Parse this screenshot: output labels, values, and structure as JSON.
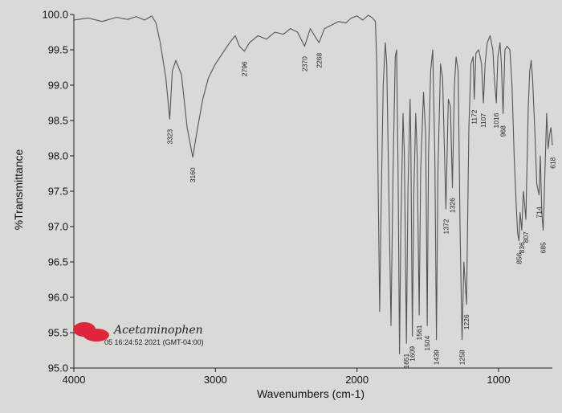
{
  "chart_data": {
    "type": "line",
    "title": "",
    "xlabel": "Wavenumbers (cm-1)",
    "ylabel": "%Transmittance",
    "xlim": [
      4000,
      620
    ],
    "ylim": [
      95.0,
      100.0
    ],
    "x_reversed": true,
    "grid": false,
    "x_ticks": [
      4000,
      3000,
      2000,
      1000
    ],
    "y_ticks": [
      "100.0",
      "99.5",
      "99.0",
      "98.5",
      "98.0",
      "97.5",
      "97.0",
      "96.5",
      "96.0",
      "95.5",
      "95.0"
    ],
    "line_color": "#555555",
    "series": [
      {
        "name": "",
        "points": [
          [
            4000,
            99.92
          ],
          [
            3900,
            99.95
          ],
          [
            3800,
            99.9
          ],
          [
            3700,
            99.96
          ],
          [
            3620,
            99.93
          ],
          [
            3560,
            99.97
          ],
          [
            3500,
            99.92
          ],
          [
            3450,
            99.98
          ],
          [
            3420,
            99.88
          ],
          [
            3390,
            99.6
          ],
          [
            3350,
            99.1
          ],
          [
            3323,
            98.52
          ],
          [
            3305,
            99.2
          ],
          [
            3280,
            99.35
          ],
          [
            3240,
            99.15
          ],
          [
            3200,
            98.4
          ],
          [
            3160,
            97.98
          ],
          [
            3130,
            98.35
          ],
          [
            3090,
            98.8
          ],
          [
            3050,
            99.1
          ],
          [
            3000,
            99.3
          ],
          [
            2950,
            99.45
          ],
          [
            2900,
            99.6
          ],
          [
            2860,
            99.7
          ],
          [
            2830,
            99.55
          ],
          [
            2796,
            99.48
          ],
          [
            2760,
            99.6
          ],
          [
            2700,
            99.7
          ],
          [
            2640,
            99.65
          ],
          [
            2580,
            99.75
          ],
          [
            2520,
            99.72
          ],
          [
            2470,
            99.8
          ],
          [
            2420,
            99.75
          ],
          [
            2370,
            99.55
          ],
          [
            2330,
            99.8
          ],
          [
            2300,
            99.7
          ],
          [
            2268,
            99.6
          ],
          [
            2230,
            99.8
          ],
          [
            2180,
            99.85
          ],
          [
            2130,
            99.9
          ],
          [
            2080,
            99.88
          ],
          [
            2040,
            99.95
          ],
          [
            2000,
            99.98
          ],
          [
            1960,
            99.92
          ],
          [
            1920,
            99.99
          ],
          [
            1890,
            99.95
          ],
          [
            1870,
            99.9
          ],
          [
            1860,
            99.3
          ],
          [
            1850,
            97.5
          ],
          [
            1840,
            95.8
          ],
          [
            1830,
            97.2
          ],
          [
            1815,
            99.0
          ],
          [
            1800,
            99.6
          ],
          [
            1790,
            99.3
          ],
          [
            1775,
            97.5
          ],
          [
            1760,
            95.6
          ],
          [
            1745,
            97.8
          ],
          [
            1730,
            99.4
          ],
          [
            1720,
            99.5
          ],
          [
            1710,
            97.8
          ],
          [
            1700,
            95.2
          ],
          [
            1690,
            97.0
          ],
          [
            1675,
            98.6
          ],
          [
            1665,
            98.0
          ],
          [
            1651,
            95.35
          ],
          [
            1640,
            97.5
          ],
          [
            1625,
            98.8
          ],
          [
            1620,
            98.2
          ],
          [
            1609,
            95.45
          ],
          [
            1598,
            97.5
          ],
          [
            1585,
            98.6
          ],
          [
            1575,
            98.0
          ],
          [
            1561,
            95.75
          ],
          [
            1550,
            97.8
          ],
          [
            1530,
            98.9
          ],
          [
            1515,
            98.3
          ],
          [
            1504,
            95.6
          ],
          [
            1495,
            98.0
          ],
          [
            1480,
            99.2
          ],
          [
            1465,
            99.5
          ],
          [
            1450,
            98.0
          ],
          [
            1439,
            95.4
          ],
          [
            1428,
            97.8
          ],
          [
            1410,
            99.3
          ],
          [
            1395,
            99.1
          ],
          [
            1372,
            97.25
          ],
          [
            1355,
            98.8
          ],
          [
            1340,
            98.7
          ],
          [
            1326,
            97.55
          ],
          [
            1312,
            99.0
          ],
          [
            1300,
            99.4
          ],
          [
            1285,
            99.2
          ],
          [
            1272,
            97.0
          ],
          [
            1258,
            95.4
          ],
          [
            1245,
            96.5
          ],
          [
            1226,
            95.9
          ],
          [
            1210,
            98.4
          ],
          [
            1195,
            99.3
          ],
          [
            1180,
            99.4
          ],
          [
            1172,
            98.8
          ],
          [
            1160,
            99.45
          ],
          [
            1140,
            99.5
          ],
          [
            1120,
            99.3
          ],
          [
            1107,
            98.75
          ],
          [
            1095,
            99.3
          ],
          [
            1080,
            99.6
          ],
          [
            1060,
            99.7
          ],
          [
            1040,
            99.5
          ],
          [
            1030,
            99.1
          ],
          [
            1016,
            98.75
          ],
          [
            1005,
            99.4
          ],
          [
            990,
            99.6
          ],
          [
            980,
            99.3
          ],
          [
            968,
            98.6
          ],
          [
            955,
            99.5
          ],
          [
            940,
            99.55
          ],
          [
            920,
            99.5
          ],
          [
            905,
            99.0
          ],
          [
            890,
            98.0
          ],
          [
            875,
            97.3
          ],
          [
            865,
            96.9
          ],
          [
            856,
            96.8
          ],
          [
            848,
            97.2
          ],
          [
            836,
            96.95
          ],
          [
            825,
            97.5
          ],
          [
            815,
            97.3
          ],
          [
            807,
            97.1
          ],
          [
            800,
            97.8
          ],
          [
            790,
            98.7
          ],
          [
            780,
            99.2
          ],
          [
            770,
            99.35
          ],
          [
            760,
            99.1
          ],
          [
            745,
            98.4
          ],
          [
            730,
            97.6
          ],
          [
            714,
            97.45
          ],
          [
            705,
            98.0
          ],
          [
            695,
            97.2
          ],
          [
            685,
            96.95
          ],
          [
            675,
            97.6
          ],
          [
            660,
            98.6
          ],
          [
            650,
            98.1
          ],
          [
            640,
            98.3
          ],
          [
            630,
            98.4
          ],
          [
            620,
            98.15
          ]
        ]
      }
    ],
    "peak_labels": [
      {
        "x": 3323,
        "text": "3323"
      },
      {
        "x": 3160,
        "text": "3160"
      },
      {
        "x": 2796,
        "text": "2796"
      },
      {
        "x": 2370,
        "text": "2370"
      },
      {
        "x": 2268,
        "text": "2268"
      },
      {
        "x": 1651,
        "text": "1651"
      },
      {
        "x": 1609,
        "text": "1609"
      },
      {
        "x": 1561,
        "text": "1561"
      },
      {
        "x": 1504,
        "text": "1504"
      },
      {
        "x": 1439,
        "text": "1439"
      },
      {
        "x": 1372,
        "text": "1372"
      },
      {
        "x": 1326,
        "text": "1326"
      },
      {
        "x": 1258,
        "text": "1258"
      },
      {
        "x": 1226,
        "text": "1226"
      },
      {
        "x": 1172,
        "text": "1172"
      },
      {
        "x": 1107,
        "text": "1107"
      },
      {
        "x": 1016,
        "text": "1016"
      },
      {
        "x": 968,
        "text": "968"
      },
      {
        "x": 856,
        "text": "856"
      },
      {
        "x": 836,
        "text": "836"
      },
      {
        "x": 807,
        "text": "807"
      },
      {
        "x": 714,
        "text": "714"
      },
      {
        "x": 685,
        "text": "685"
      },
      {
        "x": 618,
        "text": "618"
      }
    ],
    "annotations": {
      "handwritten_label": "Acetaminophen",
      "timestamp": "05 16:24:52 2021 (GMT-04:00)",
      "redaction_color": "#e0243a"
    }
  }
}
